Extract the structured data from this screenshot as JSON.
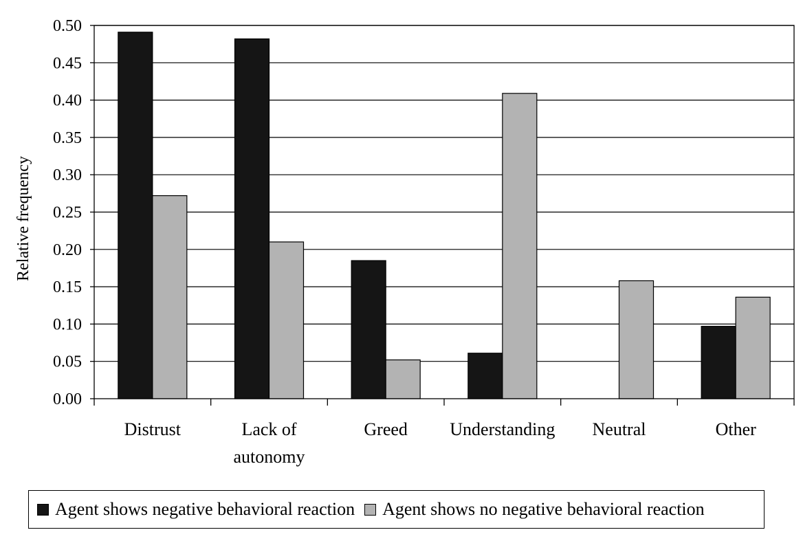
{
  "chart_data": {
    "type": "bar",
    "title": "",
    "xlabel": "",
    "ylabel": "Relative frequency",
    "ylim": [
      0,
      0.5
    ],
    "yticks": [
      "0.00",
      "0.05",
      "0.10",
      "0.15",
      "0.20",
      "0.25",
      "0.30",
      "0.35",
      "0.40",
      "0.45",
      "0.50"
    ],
    "grid": true,
    "legend_position": "bottom",
    "categories": [
      [
        "Distrust"
      ],
      [
        "Lack of",
        "autonomy"
      ],
      [
        "Greed"
      ],
      [
        "Understanding"
      ],
      [
        "Neutral"
      ],
      [
        "Other"
      ]
    ],
    "series": [
      {
        "name": "Agent shows negative behavioral reaction",
        "color": "#151515",
        "values": [
          0.491,
          0.482,
          0.185,
          0.061,
          0.0,
          0.097
        ]
      },
      {
        "name": "Agent shows no negative behavioral reaction",
        "color": "#b3b3b3",
        "values": [
          0.272,
          0.21,
          0.052,
          0.409,
          0.158,
          0.136
        ]
      }
    ]
  }
}
